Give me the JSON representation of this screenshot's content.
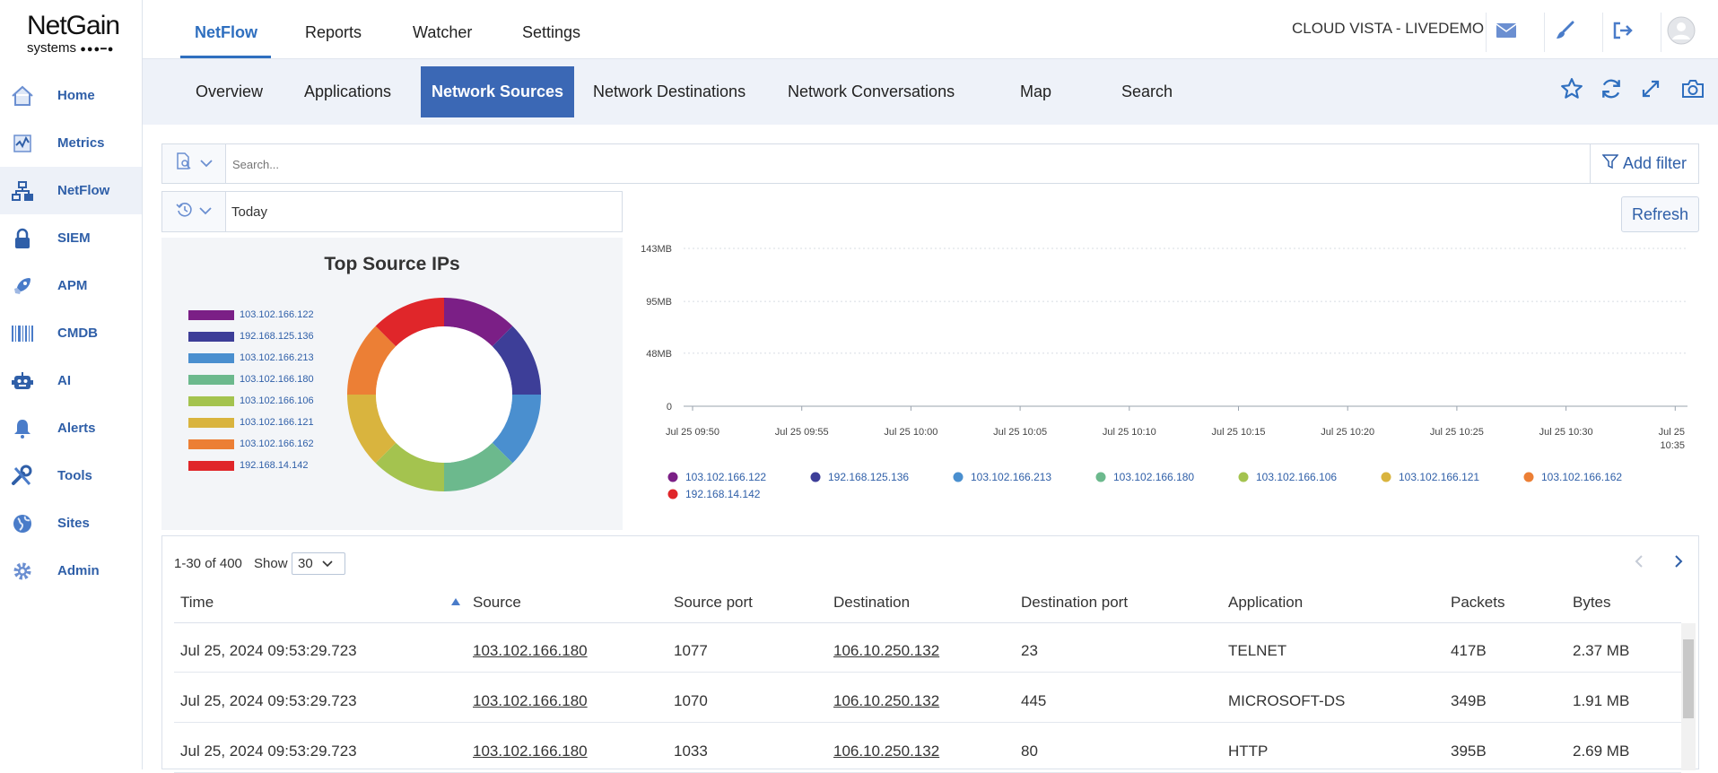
{
  "logo": {
    "line1": "NetGain",
    "line2": "systems"
  },
  "sidebar": {
    "items": [
      {
        "label": "Home",
        "icon": "home-icon"
      },
      {
        "label": "Metrics",
        "icon": "metrics-icon"
      },
      {
        "label": "NetFlow",
        "icon": "netflow-icon"
      },
      {
        "label": "SIEM",
        "icon": "lock-icon"
      },
      {
        "label": "APM",
        "icon": "rocket-icon"
      },
      {
        "label": "CMDB",
        "icon": "barcode-icon"
      },
      {
        "label": "AI",
        "icon": "robot-icon"
      },
      {
        "label": "Alerts",
        "icon": "bell-icon"
      },
      {
        "label": "Tools",
        "icon": "tools-icon"
      },
      {
        "label": "Sites",
        "icon": "globe-icon"
      },
      {
        "label": "Admin",
        "icon": "gear-icon"
      }
    ],
    "active_index": 2
  },
  "topnav": {
    "tabs": [
      "NetFlow",
      "Reports",
      "Watcher",
      "Settings"
    ],
    "org": "CLOUD VISTA - LIVEDEMO"
  },
  "subnav": {
    "tabs": [
      "Overview",
      "Applications",
      "Network Sources",
      "Network Destinations",
      "Network Conversations",
      "Map",
      "Search"
    ],
    "active": "Network Sources"
  },
  "search": {
    "placeholder": "Search...",
    "add_filter": "Add filter"
  },
  "timerange": {
    "value": "Today",
    "refresh": "Refresh"
  },
  "colors": {
    "accent": "#3b68b5",
    "series": [
      "#7b1f86",
      "#3d3e98",
      "#4a8fcf",
      "#6cb98d",
      "#a4c34f",
      "#d9b43e",
      "#ec7f35",
      "#e0262a"
    ]
  },
  "chart_data": [
    {
      "type": "pie",
      "title": "Top Source IPs",
      "categories": [
        "103.102.166.122",
        "192.168.125.136",
        "103.102.166.213",
        "103.102.166.180",
        "103.102.166.106",
        "103.102.166.121",
        "103.102.166.162",
        "192.168.14.142"
      ],
      "values": [
        12.5,
        12.5,
        12.5,
        12.5,
        12.5,
        12.5,
        12.5,
        12.5
      ]
    },
    {
      "type": "line",
      "yticks": [
        "0",
        "48MB",
        "95MB",
        "143MB"
      ],
      "ylim": [
        0,
        143
      ],
      "xticks": [
        "Jul 25 09:50",
        "Jul 25 09:55",
        "Jul 25 10:00",
        "Jul 25 10:05",
        "Jul 25 10:10",
        "Jul 25 10:15",
        "Jul 25 10:20",
        "Jul 25 10:25",
        "Jul 25 10:30",
        "Jul 25 10:35"
      ],
      "legend": [
        "103.102.166.122",
        "192.168.125.136",
        "103.102.166.213",
        "103.102.166.180",
        "103.102.166.106",
        "103.102.166.121",
        "103.102.166.162",
        "192.168.14.142"
      ],
      "grid": true
    }
  ],
  "table": {
    "range": "1-30 of 400",
    "show_label": "Show",
    "show_value": "30",
    "columns": [
      "Time",
      "Source",
      "Source port",
      "Destination",
      "Destination port",
      "Application",
      "Packets",
      "Bytes"
    ],
    "rows": [
      [
        "Jul 25, 2024 09:53:29.723",
        "103.102.166.180",
        "1077",
        "106.10.250.132",
        "23",
        "TELNET",
        "417B",
        "2.37 MB"
      ],
      [
        "Jul 25, 2024 09:53:29.723",
        "103.102.166.180",
        "1070",
        "106.10.250.132",
        "445",
        "MICROSOFT-DS",
        "349B",
        "1.91 MB"
      ],
      [
        "Jul 25, 2024 09:53:29.723",
        "103.102.166.180",
        "1033",
        "106.10.250.132",
        "80",
        "HTTP",
        "395B",
        "2.69 MB"
      ]
    ]
  }
}
